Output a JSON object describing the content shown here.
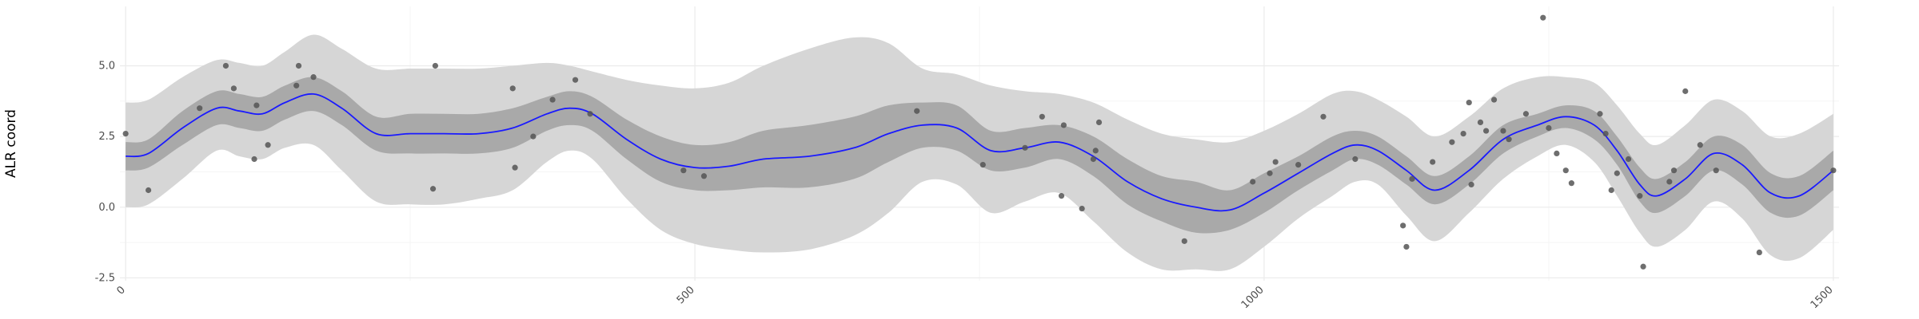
{
  "chart_data": {
    "type": "line",
    "title": "",
    "xlabel": "",
    "ylabel": "ALR coord",
    "xlim": [
      -5,
      1505
    ],
    "ylim": [
      -2.6,
      7.1
    ],
    "x_ticks": [
      0,
      500,
      1000,
      1500
    ],
    "x_tick_labels": [
      "0",
      "500",
      "1000",
      "1500"
    ],
    "y_ticks": [
      -2.5,
      0.0,
      2.5,
      5.0
    ],
    "y_tick_labels": [
      "-2.5",
      "0.0",
      "2.5",
      "5.0"
    ],
    "grid": true,
    "legend": "none",
    "colors": {
      "line": "#1a1aff",
      "inner_band": "#a9a9a9",
      "outer_band": "#d6d6d6",
      "points": "#555555",
      "grid_major": "#ebebeb",
      "grid_minor": "#f5f5f5"
    },
    "mean_line": {
      "x": [
        0,
        20,
        50,
        80,
        100,
        120,
        140,
        165,
        190,
        220,
        250,
        280,
        310,
        340,
        370,
        390,
        410,
        440,
        470,
        500,
        530,
        560,
        600,
        640,
        670,
        700,
        730,
        760,
        790,
        820,
        850,
        880,
        910,
        940,
        970,
        1000,
        1030,
        1060,
        1080,
        1100,
        1125,
        1150,
        1180,
        1210,
        1240,
        1265,
        1290,
        1310,
        1330,
        1345,
        1370,
        1395,
        1420,
        1445,
        1470,
        1500
      ],
      "y": [
        1.8,
        1.9,
        2.8,
        3.5,
        3.4,
        3.3,
        3.7,
        4.0,
        3.5,
        2.6,
        2.6,
        2.6,
        2.6,
        2.8,
        3.3,
        3.5,
        3.3,
        2.4,
        1.7,
        1.4,
        1.45,
        1.7,
        1.8,
        2.1,
        2.6,
        2.9,
        2.8,
        2.0,
        2.1,
        2.3,
        1.8,
        0.9,
        0.3,
        0.0,
        -0.1,
        0.5,
        1.2,
        1.9,
        2.2,
        2.0,
        1.3,
        0.6,
        1.3,
        2.4,
        2.9,
        3.2,
        2.9,
        2.0,
        0.8,
        0.4,
        1.0,
        1.9,
        1.5,
        0.5,
        0.4,
        1.3
      ]
    },
    "inner_band": {
      "x": [
        0,
        20,
        50,
        80,
        100,
        120,
        140,
        165,
        190,
        220,
        250,
        280,
        310,
        340,
        370,
        390,
        410,
        440,
        470,
        500,
        530,
        560,
        600,
        640,
        670,
        700,
        730,
        760,
        790,
        820,
        850,
        880,
        910,
        940,
        970,
        1000,
        1030,
        1060,
        1080,
        1100,
        1125,
        1150,
        1180,
        1210,
        1240,
        1265,
        1290,
        1310,
        1330,
        1345,
        1370,
        1395,
        1420,
        1445,
        1470,
        1500
      ],
      "lower": [
        1.3,
        1.4,
        2.2,
        2.9,
        2.8,
        2.7,
        3.1,
        3.4,
        2.9,
        2.0,
        1.9,
        1.9,
        1.9,
        2.1,
        2.7,
        2.9,
        2.7,
        1.7,
        0.9,
        0.6,
        0.6,
        0.7,
        0.7,
        1.0,
        1.6,
        2.1,
        2.0,
        1.3,
        1.4,
        1.7,
        1.1,
        0.1,
        -0.5,
        -0.9,
        -0.8,
        -0.2,
        0.6,
        1.3,
        1.7,
        1.5,
        0.8,
        0.1,
        0.8,
        1.9,
        2.5,
        2.8,
        2.4,
        1.5,
        0.2,
        -0.2,
        0.4,
        1.3,
        0.8,
        -0.2,
        -0.3,
        0.6
      ],
      "upper": [
        2.3,
        2.4,
        3.4,
        4.1,
        4.0,
        3.9,
        4.3,
        4.6,
        4.1,
        3.2,
        3.3,
        3.3,
        3.3,
        3.5,
        3.9,
        4.1,
        3.9,
        3.1,
        2.5,
        2.2,
        2.3,
        2.7,
        2.9,
        3.2,
        3.6,
        3.7,
        3.6,
        2.7,
        2.8,
        2.9,
        2.5,
        1.7,
        1.1,
        0.9,
        0.6,
        1.2,
        1.8,
        2.5,
        2.7,
        2.5,
        1.8,
        1.1,
        1.8,
        2.9,
        3.3,
        3.6,
        3.4,
        2.5,
        1.4,
        1.0,
        1.6,
        2.5,
        2.2,
        1.2,
        1.1,
        2.0
      ]
    },
    "outer_band": {
      "x": [
        0,
        20,
        50,
        80,
        100,
        120,
        140,
        165,
        190,
        220,
        250,
        280,
        310,
        340,
        370,
        390,
        410,
        440,
        470,
        500,
        530,
        560,
        600,
        640,
        670,
        700,
        730,
        760,
        790,
        820,
        850,
        880,
        910,
        940,
        970,
        1000,
        1030,
        1060,
        1080,
        1100,
        1125,
        1150,
        1180,
        1210,
        1240,
        1265,
        1290,
        1310,
        1330,
        1345,
        1370,
        1395,
        1420,
        1445,
        1470,
        1500
      ],
      "lower": [
        0.0,
        0.1,
        1.0,
        2.0,
        1.8,
        1.7,
        2.1,
        2.2,
        1.3,
        0.2,
        0.1,
        0.1,
        0.3,
        0.6,
        1.6,
        2.0,
        1.7,
        0.3,
        -0.8,
        -1.3,
        -1.5,
        -1.6,
        -1.5,
        -1.0,
        -0.2,
        0.9,
        0.8,
        -0.2,
        0.2,
        0.5,
        -0.5,
        -1.6,
        -2.2,
        -2.2,
        -2.2,
        -1.4,
        -0.4,
        0.4,
        0.9,
        0.8,
        -0.3,
        -1.2,
        -0.2,
        1.0,
        1.8,
        2.2,
        1.6,
        0.4,
        -0.9,
        -1.4,
        -0.8,
        0.2,
        -0.4,
        -1.7,
        -1.8,
        -0.8
      ],
      "upper": [
        3.7,
        3.8,
        4.6,
        5.2,
        5.1,
        5.0,
        5.5,
        6.1,
        5.6,
        4.9,
        4.9,
        4.9,
        4.9,
        5.0,
        5.1,
        5.0,
        4.8,
        4.5,
        4.3,
        4.2,
        4.4,
        5.0,
        5.6,
        6.0,
        5.8,
        4.9,
        4.7,
        4.3,
        4.1,
        4.0,
        3.7,
        3.1,
        2.6,
        2.4,
        2.3,
        2.7,
        3.3,
        4.0,
        4.1,
        3.8,
        3.2,
        2.5,
        3.2,
        4.2,
        4.6,
        4.6,
        4.4,
        3.6,
        2.6,
        2.2,
        2.9,
        3.8,
        3.4,
        2.5,
        2.6,
        3.3
      ]
    },
    "points": {
      "x": [
        0,
        20,
        65,
        88,
        95,
        113,
        115,
        125,
        150,
        152,
        165,
        270,
        272,
        340,
        342,
        358,
        375,
        395,
        408,
        490,
        508,
        695,
        753,
        790,
        805,
        822,
        824,
        840,
        850,
        852,
        855,
        930,
        990,
        1005,
        1010,
        1030,
        1052,
        1080,
        1122,
        1125,
        1130,
        1148,
        1165,
        1175,
        1180,
        1182,
        1190,
        1195,
        1202,
        1210,
        1215,
        1230,
        1245,
        1250,
        1257,
        1265,
        1270,
        1295,
        1300,
        1305,
        1310,
        1320,
        1330,
        1333,
        1356,
        1360,
        1370,
        1383,
        1397,
        1435,
        1500
      ],
      "y": [
        2.6,
        0.6,
        3.5,
        5.0,
        4.2,
        1.7,
        3.6,
        2.2,
        4.3,
        5.0,
        4.6,
        0.65,
        5.0,
        4.2,
        1.4,
        2.5,
        3.8,
        4.5,
        3.3,
        1.3,
        1.1,
        3.4,
        1.5,
        2.1,
        3.2,
        0.4,
        2.9,
        -0.05,
        1.7,
        2.0,
        3.0,
        -1.2,
        0.9,
        1.2,
        1.6,
        1.5,
        3.2,
        1.7,
        -0.65,
        -1.4,
        1.0,
        1.6,
        2.3,
        2.6,
        3.7,
        0.8,
        3.0,
        2.7,
        3.8,
        2.7,
        2.4,
        3.3,
        6.7,
        2.8,
        1.9,
        1.3,
        0.85,
        3.3,
        2.6,
        0.6,
        1.2,
        1.7,
        0.4,
        -2.1,
        0.9,
        1.3,
        4.1,
        2.2,
        1.3,
        -1.6,
        1.3
      ]
    }
  }
}
